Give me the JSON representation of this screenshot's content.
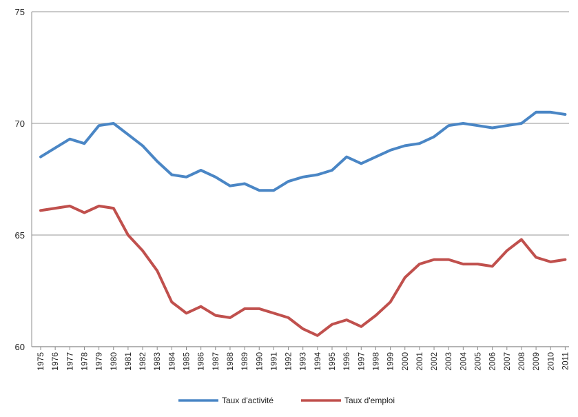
{
  "chart_data": {
    "type": "line",
    "title": "",
    "xlabel": "",
    "ylabel": "",
    "ylim": [
      60,
      75
    ],
    "yticks": [
      "60",
      "65",
      "70",
      "75"
    ],
    "grid": "horizontal",
    "legend_position": "bottom",
    "x": [
      "1975",
      "1976",
      "1977",
      "1978",
      "1979",
      "1980",
      "1981",
      "1982",
      "1983",
      "1984",
      "1985",
      "1986",
      "1987",
      "1988",
      "1989",
      "1990",
      "1991",
      "1992",
      "1993",
      "1994",
      "1995",
      "1996",
      "1997",
      "1998",
      "1999",
      "2000",
      "2001",
      "2002",
      "2003",
      "2004",
      "2005",
      "2006",
      "2007",
      "2008",
      "2009",
      "2010",
      "2011"
    ],
    "series": [
      {
        "name": "Taux d'activité",
        "color": "#4a86c5",
        "values": [
          68.5,
          68.9,
          69.3,
          69.1,
          69.9,
          70.0,
          69.5,
          69.0,
          68.3,
          67.7,
          67.6,
          67.9,
          67.6,
          67.2,
          67.3,
          67.0,
          67.0,
          67.4,
          67.6,
          67.7,
          67.9,
          68.5,
          68.2,
          68.5,
          68.8,
          69.0,
          69.1,
          69.4,
          69.9,
          70.0,
          69.9,
          69.8,
          69.9,
          70.0,
          70.5,
          70.5,
          70.4
        ]
      },
      {
        "name": "Taux d'emploi",
        "color": "#c0504d",
        "values": [
          66.1,
          66.2,
          66.3,
          66.0,
          66.3,
          66.2,
          65.0,
          64.3,
          63.4,
          62.0,
          61.5,
          61.8,
          61.4,
          61.3,
          61.7,
          61.7,
          61.5,
          61.3,
          60.8,
          60.5,
          61.0,
          61.2,
          60.9,
          61.4,
          62.0,
          63.1,
          63.7,
          63.9,
          63.9,
          63.7,
          63.7,
          63.6,
          64.3,
          64.8,
          64.0,
          63.8,
          63.9
        ]
      }
    ]
  }
}
